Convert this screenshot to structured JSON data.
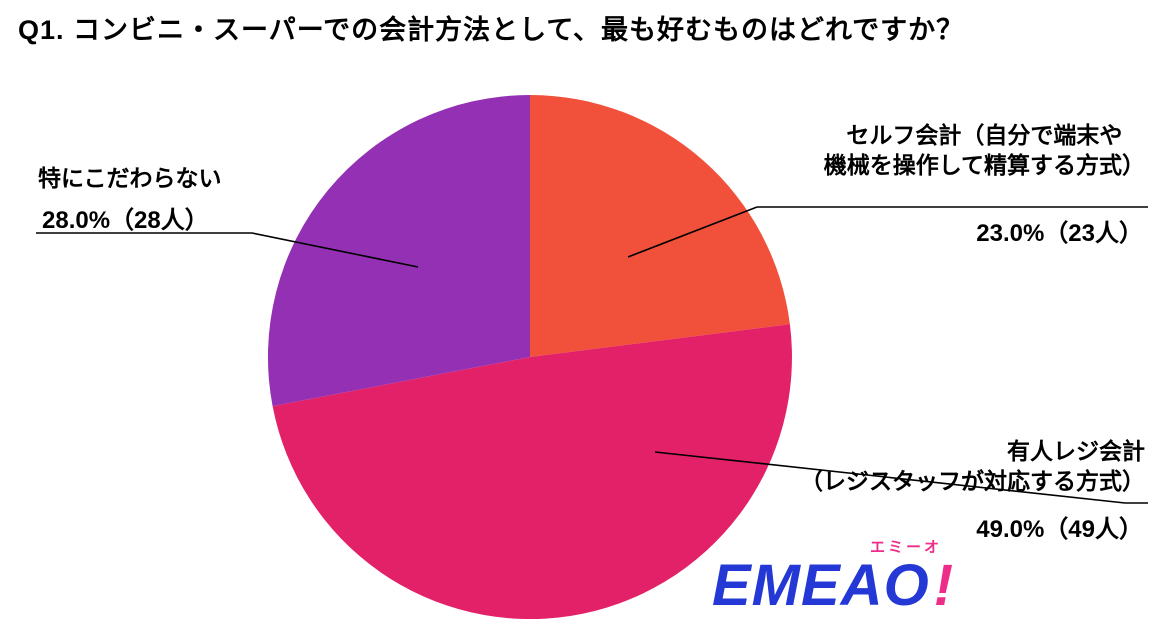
{
  "title": "Q1. コンビニ・スーパーでの会計方法として、最も好むものはどれですか？",
  "chart_data": {
    "type": "pie",
    "title": "Q1. コンビニ・スーパーでの会計方法として、最も好むものはどれですか？",
    "start_angle_deg": 0,
    "direction": "clockwise",
    "total_respondents": 100,
    "slices": [
      {
        "label": "セルフ会計（自分で端末や機械を操作して精算する方式）",
        "percent": 23.0,
        "count": 23,
        "display": "23.0%（23人）",
        "color": "#f1503a"
      },
      {
        "label": "有人レジ会計（レジスタッフが対応する方式）",
        "percent": 49.0,
        "count": 49,
        "display": "49.0%（49人）",
        "color": "#e22168"
      },
      {
        "label": "特にこだわらない",
        "percent": 28.0,
        "count": 28,
        "display": "28.0%（28人）",
        "color": "#9430b4"
      }
    ]
  },
  "callouts": {
    "self": {
      "lines": [
        "セルフ会計（自分で端末や",
        "機械を操作して精算する方式）"
      ]
    },
    "staffed": {
      "lines": [
        "有人レジ会計",
        "（レジスタッフが対応する方式）"
      ]
    },
    "none": {
      "lines": [
        "特にこだわらない"
      ]
    }
  },
  "logo": {
    "furigana": "エミーオ",
    "text": "EMEAO",
    "exclamation": "!"
  }
}
